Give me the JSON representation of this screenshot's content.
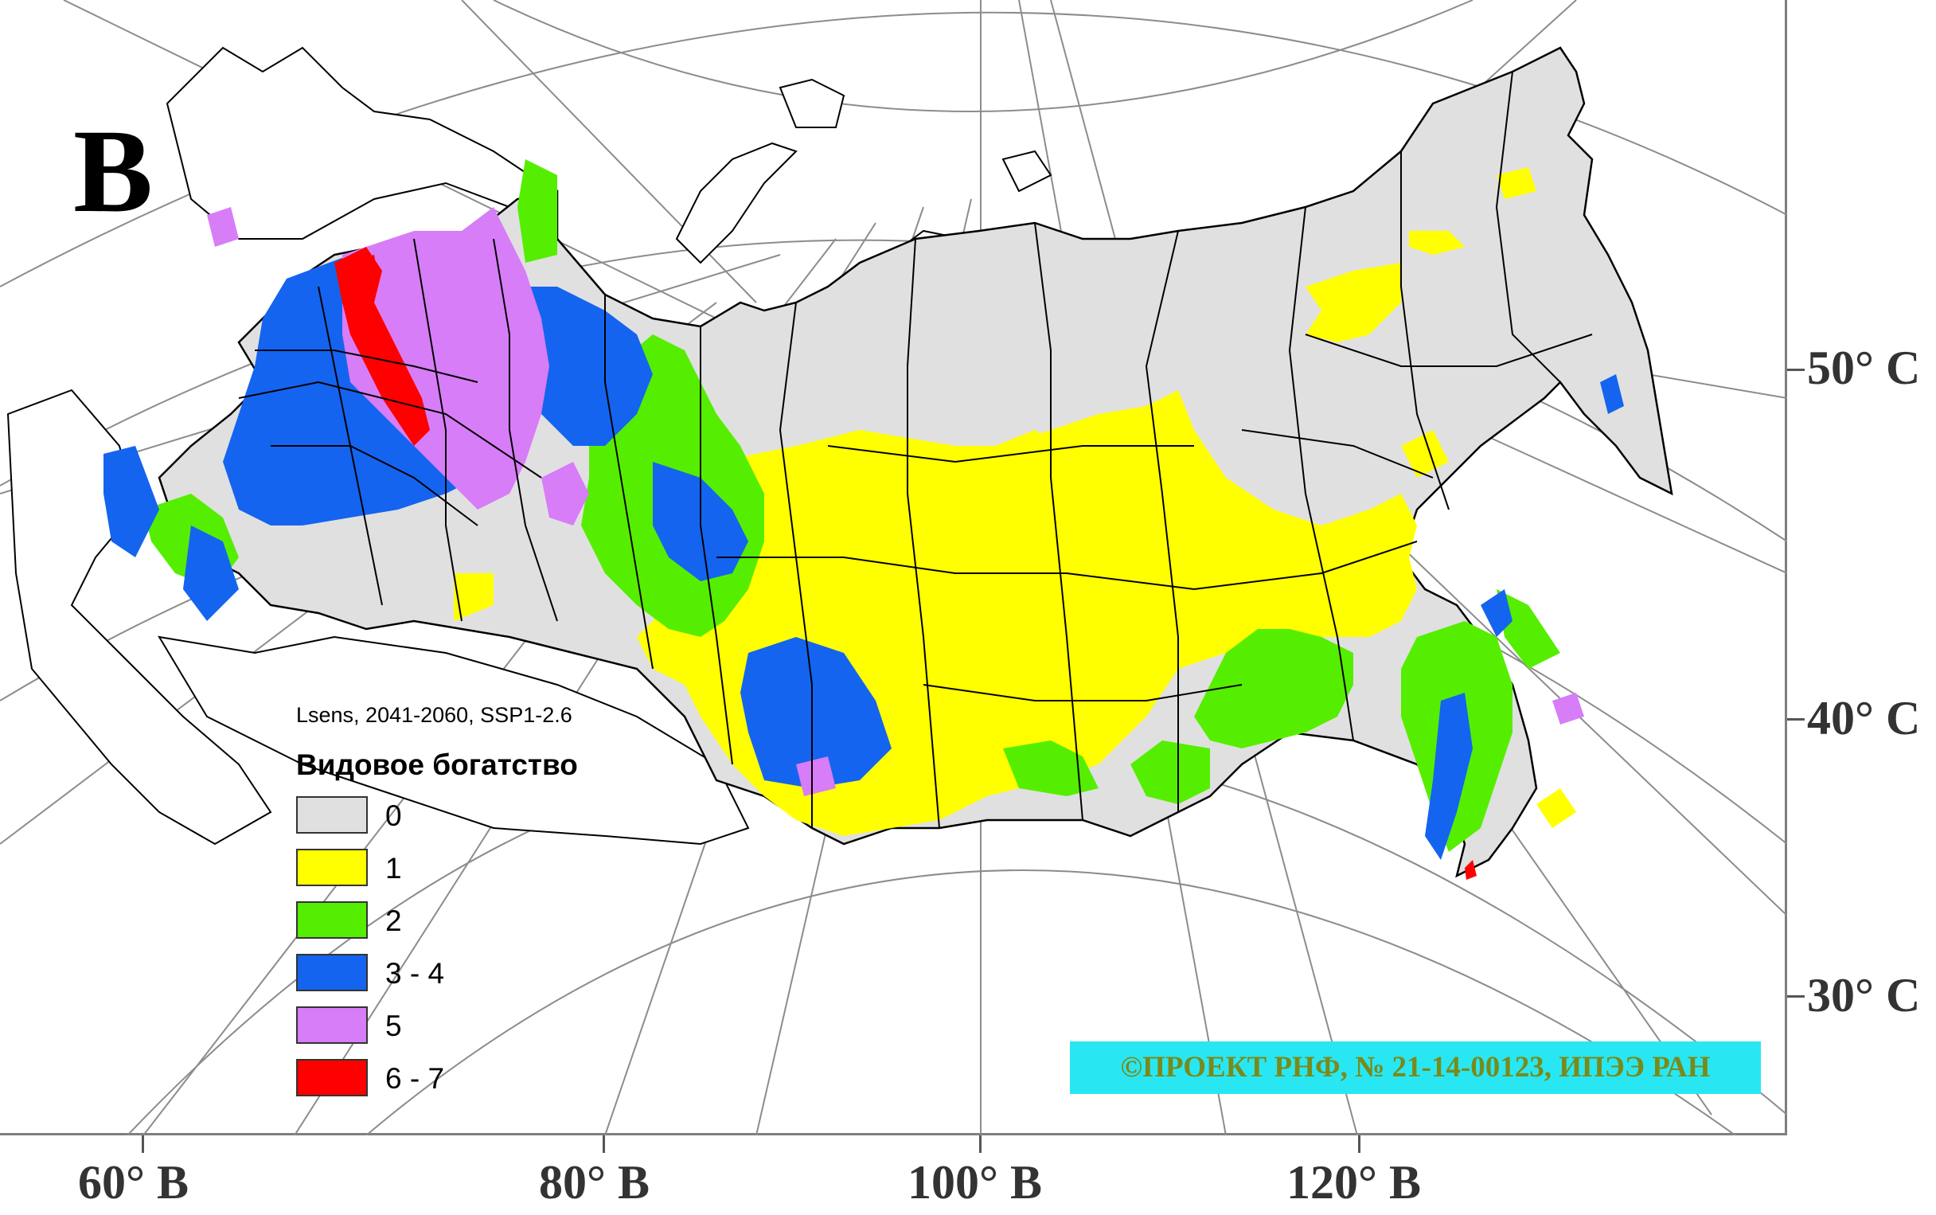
{
  "panel_letter": "В",
  "subtitle": "Lsens, 2041-2060, SSP1-2.6",
  "legend": {
    "title": "Видовое богатство",
    "items": [
      {
        "label": "0",
        "color": "#e0e0e0"
      },
      {
        "label": "1",
        "color": "#ffff00"
      },
      {
        "label": "2",
        "color": "#55ee00"
      },
      {
        "label": "3 - 4",
        "color": "#1464f0"
      },
      {
        "label": "5",
        "color": "#d77df7"
      },
      {
        "label": "6 - 7",
        "color": "#ff0000"
      }
    ]
  },
  "latitude_labels": [
    "50° С",
    "40° С",
    "30° С"
  ],
  "longitude_labels": [
    "60° В",
    "80° В",
    "100° В",
    "120° В"
  ],
  "credit": "©ПРОЕКТ РНФ, № 21-14-00123, ИПЭЭ РАН",
  "colors": {
    "graticule": "#8c8c8c",
    "border": "#000000",
    "frame": "#7f7f7f",
    "credit_bg": "#29e7f2",
    "credit_text": "#7a8a1a"
  }
}
